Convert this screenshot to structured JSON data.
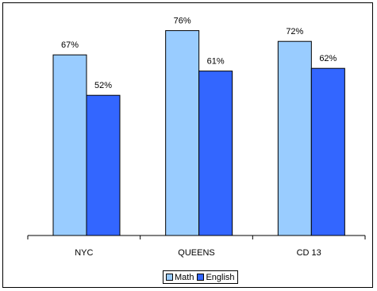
{
  "chart_data": {
    "type": "bar",
    "categories": [
      "NYC",
      "QUEENS",
      "CD 13"
    ],
    "series": [
      {
        "name": "Math",
        "values": [
          67,
          76,
          72
        ],
        "labels": [
          "67%",
          "76%",
          "72%"
        ],
        "color": "#99CCFF"
      },
      {
        "name": "English",
        "values": [
          52,
          61,
          62
        ],
        "labels": [
          "52%",
          "61%",
          "62%"
        ],
        "color": "#3366FF"
      }
    ],
    "title": "",
    "xlabel": "",
    "ylabel": "",
    "ylim": [
      0,
      100
    ],
    "grid": false,
    "legend_position": "bottom"
  },
  "legend": {
    "math_label": "Math",
    "english_label": "English"
  }
}
